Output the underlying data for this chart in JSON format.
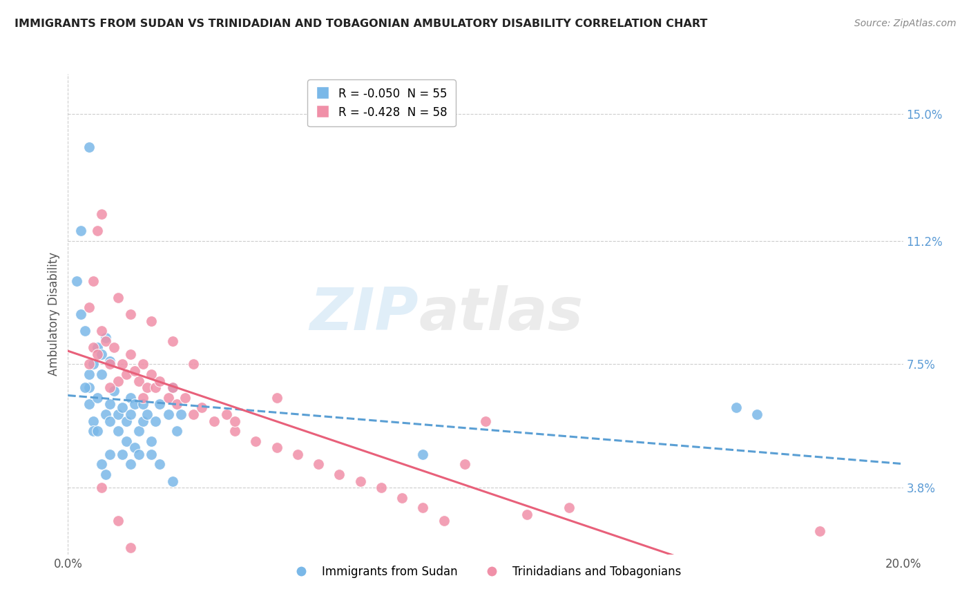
{
  "title": "IMMIGRANTS FROM SUDAN VS TRINIDADIAN AND TOBAGONIAN AMBULATORY DISABILITY CORRELATION CHART",
  "source": "Source: ZipAtlas.com",
  "ylabel": "Ambulatory Disability",
  "x_min": 0.0,
  "x_max": 0.2,
  "y_min": 0.018,
  "y_max": 0.162,
  "y_ticks": [
    0.038,
    0.075,
    0.112,
    0.15
  ],
  "y_tick_labels": [
    "3.8%",
    "7.5%",
    "11.2%",
    "15.0%"
  ],
  "x_ticks": [
    0.0,
    0.2
  ],
  "x_tick_labels": [
    "0.0%",
    "20.0%"
  ],
  "blue_R": -0.05,
  "blue_N": 55,
  "pink_R": -0.428,
  "pink_N": 58,
  "blue_color": "#7ab8e8",
  "pink_color": "#f090a8",
  "blue_line_color": "#5a9fd4",
  "pink_line_color": "#e8607a",
  "blue_scatter_x": [
    0.005,
    0.005,
    0.006,
    0.007,
    0.008,
    0.009,
    0.01,
    0.01,
    0.011,
    0.012,
    0.012,
    0.013,
    0.014,
    0.015,
    0.015,
    0.016,
    0.017,
    0.018,
    0.018,
    0.019,
    0.02,
    0.021,
    0.022,
    0.024,
    0.025,
    0.026,
    0.027,
    0.005,
    0.006,
    0.007,
    0.003,
    0.004,
    0.008,
    0.009,
    0.01,
    0.002,
    0.003,
    0.005,
    0.013,
    0.014,
    0.015,
    0.016,
    0.017,
    0.008,
    0.009,
    0.01,
    0.004,
    0.006,
    0.02,
    0.022,
    0.025,
    0.16,
    0.165,
    0.085,
    0.007
  ],
  "blue_scatter_y": [
    0.063,
    0.068,
    0.058,
    0.065,
    0.072,
    0.06,
    0.063,
    0.058,
    0.067,
    0.055,
    0.06,
    0.062,
    0.058,
    0.065,
    0.06,
    0.063,
    0.055,
    0.058,
    0.063,
    0.06,
    0.052,
    0.058,
    0.063,
    0.06,
    0.068,
    0.055,
    0.06,
    0.072,
    0.075,
    0.08,
    0.09,
    0.085,
    0.078,
    0.083,
    0.076,
    0.1,
    0.115,
    0.14,
    0.048,
    0.052,
    0.045,
    0.05,
    0.048,
    0.045,
    0.042,
    0.048,
    0.068,
    0.055,
    0.048,
    0.045,
    0.04,
    0.062,
    0.06,
    0.048,
    0.055
  ],
  "pink_scatter_x": [
    0.005,
    0.006,
    0.007,
    0.008,
    0.009,
    0.01,
    0.011,
    0.012,
    0.013,
    0.014,
    0.015,
    0.016,
    0.017,
    0.018,
    0.019,
    0.02,
    0.021,
    0.022,
    0.024,
    0.025,
    0.026,
    0.028,
    0.03,
    0.032,
    0.035,
    0.038,
    0.04,
    0.045,
    0.05,
    0.055,
    0.06,
    0.065,
    0.07,
    0.075,
    0.08,
    0.085,
    0.005,
    0.006,
    0.007,
    0.008,
    0.012,
    0.015,
    0.02,
    0.025,
    0.03,
    0.01,
    0.018,
    0.04,
    0.05,
    0.09,
    0.095,
    0.1,
    0.11,
    0.12,
    0.18,
    0.008,
    0.012,
    0.015
  ],
  "pink_scatter_y": [
    0.075,
    0.08,
    0.078,
    0.085,
    0.082,
    0.075,
    0.08,
    0.07,
    0.075,
    0.072,
    0.078,
    0.073,
    0.07,
    0.075,
    0.068,
    0.072,
    0.068,
    0.07,
    0.065,
    0.068,
    0.063,
    0.065,
    0.06,
    0.062,
    0.058,
    0.06,
    0.055,
    0.052,
    0.05,
    0.048,
    0.045,
    0.042,
    0.04,
    0.038,
    0.035,
    0.032,
    0.092,
    0.1,
    0.115,
    0.12,
    0.095,
    0.09,
    0.088,
    0.082,
    0.075,
    0.068,
    0.065,
    0.058,
    0.065,
    0.028,
    0.045,
    0.058,
    0.03,
    0.032,
    0.025,
    0.038,
    0.028,
    0.02
  ],
  "watermark_left": "ZIP",
  "watermark_right": "atlas",
  "background_color": "#ffffff"
}
